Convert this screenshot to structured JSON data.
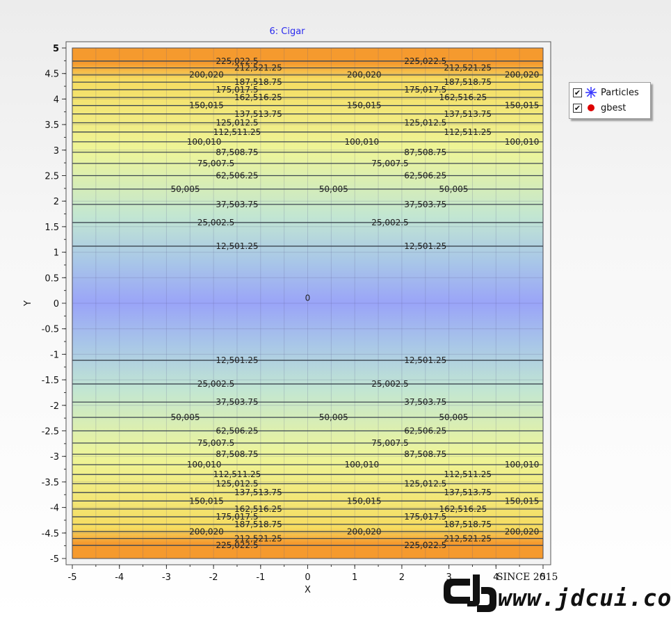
{
  "chart_data": {
    "type": "contour",
    "title": "6: Cigar",
    "xlabel": "X",
    "ylabel": "Y",
    "xlim": [
      -5,
      5
    ],
    "ylim": [
      -5,
      5
    ],
    "x_ticks": [
      -5,
      -4,
      -3,
      -2,
      -1,
      0,
      1,
      2,
      3,
      4,
      5
    ],
    "y_ticks": [
      5,
      4.5,
      4,
      3.5,
      3,
      2.5,
      2,
      1.5,
      1,
      0.5,
      0,
      -0.5,
      -1,
      -1.5,
      -2,
      -2.5,
      -3,
      -3.5,
      -4,
      -4.5,
      -5
    ],
    "x_tick_labels": [
      "-5",
      "-4",
      "-3",
      "-2",
      "-1",
      "0",
      "1",
      "2",
      "3",
      "4",
      "5"
    ],
    "y_tick_labels": [
      "5",
      "4.5",
      "4",
      "3.5",
      "3",
      "2.5",
      "2",
      "1.5",
      "1",
      "0.5",
      "0",
      "-0.5",
      "-1",
      "-1.5",
      "-2",
      "-2.5",
      "-3",
      "-3.5",
      "-4",
      "-4.5",
      "-5"
    ],
    "grid": true,
    "legend_position": "right",
    "center_label": {
      "text": "0",
      "x": 0,
      "y": 0.1
    },
    "contour_levels": [
      {
        "value": 12501.25,
        "label": "12,501.25",
        "label_x": [
          -1.5,
          2.5
        ]
      },
      {
        "value": 25002.5,
        "label": "25,002.5",
        "label_x": [
          -1.95,
          1.75
        ]
      },
      {
        "value": 37503.75,
        "label": "37,503.75",
        "label_x": [
          -1.5,
          2.5
        ]
      },
      {
        "value": 50005,
        "label": "50,005",
        "label_x": [
          -2.6,
          0.55,
          3.1
        ]
      },
      {
        "value": 62506.25,
        "label": "62,506.25",
        "label_x": [
          -1.5,
          2.5
        ]
      },
      {
        "value": 75007.5,
        "label": "75,007.5",
        "label_x": [
          -1.95,
          1.75
        ]
      },
      {
        "value": 87508.75,
        "label": "87,508.75",
        "label_x": [
          -1.5,
          2.5
        ]
      },
      {
        "value": 100010,
        "label": "100,010",
        "label_x": [
          -2.2,
          1.15,
          4.55
        ]
      },
      {
        "value": 112511.25,
        "label": "112,511.25",
        "label_x": [
          -1.5,
          3.4
        ]
      },
      {
        "value": 125012.5,
        "label": "125,012.5",
        "label_x": [
          -1.5,
          2.5
        ]
      },
      {
        "value": 137513.75,
        "label": "137,513.75",
        "label_x": [
          -1.05,
          3.4
        ]
      },
      {
        "value": 150015,
        "label": "150,015",
        "label_x": [
          -2.15,
          1.2,
          4.55
        ]
      },
      {
        "value": 162516.25,
        "label": "162,516.25",
        "label_x": [
          -1.05,
          3.3
        ]
      },
      {
        "value": 175017.5,
        "label": "175,017.5",
        "label_x": [
          -1.5,
          2.5
        ]
      },
      {
        "value": 187518.75,
        "label": "187,518.75",
        "label_x": [
          -1.05,
          3.4
        ]
      },
      {
        "value": 200020,
        "label": "200,020",
        "label_x": [
          -2.15,
          1.2,
          4.55
        ]
      },
      {
        "value": 212521.25,
        "label": "212,521.25",
        "label_x": [
          -1.05,
          3.4
        ]
      },
      {
        "value": 225022.5,
        "label": "225,022.5",
        "label_x": [
          -1.5,
          2.5
        ]
      }
    ],
    "series": [
      {
        "name": "Particles",
        "symbol": "asterisk",
        "color": "#3a3aff",
        "values": []
      },
      {
        "name": "gbest",
        "symbol": "circle",
        "color": "#dd0000",
        "values": []
      }
    ],
    "colors": {
      "low": "#9aa4f8",
      "mid_low": "#a8c6e8",
      "mid": "#c2e6d2",
      "mid_high": "#eef598",
      "high": "#f6dc60",
      "highest": "#f59a2e",
      "title": "#2a2aee",
      "contour_line": "#3c4650"
    }
  },
  "legend": {
    "items": [
      {
        "label": "Particles",
        "checked_mark": "✔",
        "icon": "asterisk-icon",
        "color": "#3a3aff"
      },
      {
        "label": "gbest",
        "checked_mark": "✔",
        "icon": "red-dot-icon",
        "color": "#dd0000"
      }
    ]
  },
  "watermark": {
    "since": "SINCE 2015",
    "url": "www.jdcui.com",
    "logo": "JD"
  }
}
